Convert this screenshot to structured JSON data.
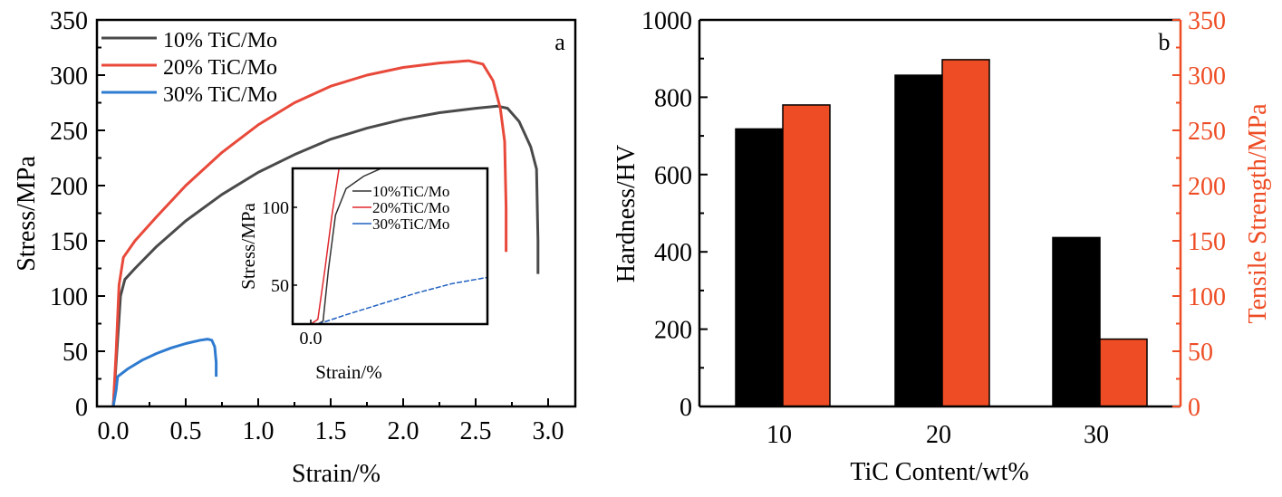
{
  "chart_data": [
    {
      "type": "line",
      "panel_label": "a",
      "title": "",
      "xlabel": "Strain/%",
      "ylabel": "Stress/MPa",
      "xlim": [
        -0.1,
        3.25
      ],
      "ylim": [
        0,
        350
      ],
      "xticks": [
        "0.0",
        "0.5",
        "1.0",
        "1.5",
        "2.0",
        "2.5",
        "3.0"
      ],
      "yticks": [
        "0",
        "50",
        "100",
        "150",
        "200",
        "250",
        "300",
        "350"
      ],
      "grid": false,
      "legend_position": "top-left",
      "series": [
        {
          "name": "10% TiC/Mo",
          "color": "#4a4a4a",
          "points": [
            [
              0.0,
              0
            ],
            [
              0.03,
              60
            ],
            [
              0.05,
              100
            ],
            [
              0.08,
              115
            ],
            [
              0.15,
              125
            ],
            [
              0.3,
              145
            ],
            [
              0.5,
              168
            ],
            [
              0.75,
              192
            ],
            [
              1.0,
              212
            ],
            [
              1.25,
              228
            ],
            [
              1.5,
              242
            ],
            [
              1.75,
              252
            ],
            [
              2.0,
              260
            ],
            [
              2.25,
              266
            ],
            [
              2.5,
              270
            ],
            [
              2.65,
              272
            ],
            [
              2.72,
              270
            ],
            [
              2.8,
              258
            ],
            [
              2.88,
              235
            ],
            [
              2.92,
              215
            ],
            [
              2.93,
              150
            ],
            [
              2.93,
              120
            ]
          ]
        },
        {
          "name": "20% TiC/Mo",
          "color": "#e8493a",
          "points": [
            [
              0.0,
              0
            ],
            [
              0.02,
              50
            ],
            [
              0.04,
              110
            ],
            [
              0.07,
              135
            ],
            [
              0.15,
              150
            ],
            [
              0.3,
              172
            ],
            [
              0.5,
              200
            ],
            [
              0.75,
              230
            ],
            [
              1.0,
              255
            ],
            [
              1.25,
              275
            ],
            [
              1.5,
              290
            ],
            [
              1.75,
              300
            ],
            [
              2.0,
              307
            ],
            [
              2.25,
              311
            ],
            [
              2.45,
              313
            ],
            [
              2.55,
              310
            ],
            [
              2.62,
              295
            ],
            [
              2.67,
              270
            ],
            [
              2.7,
              240
            ],
            [
              2.71,
              180
            ],
            [
              2.71,
              140
            ]
          ]
        },
        {
          "name": "30% TiC/Mo",
          "color": "#2f7bd0",
          "points": [
            [
              0.0,
              0
            ],
            [
              0.02,
              15
            ],
            [
              0.03,
              27
            ],
            [
              0.1,
              34
            ],
            [
              0.2,
              42
            ],
            [
              0.3,
              48
            ],
            [
              0.4,
              53
            ],
            [
              0.5,
              57
            ],
            [
              0.6,
              60
            ],
            [
              0.65,
              61
            ],
            [
              0.68,
              60
            ],
            [
              0.7,
              54
            ],
            [
              0.71,
              40
            ],
            [
              0.71,
              27
            ]
          ]
        }
      ],
      "inset": {
        "xlabel": "Strain/%",
        "ylabel": "Stress/MPa",
        "xlim": [
          -0.02,
          0.5
        ],
        "ylim": [
          25,
          125
        ],
        "xticks": [
          "0.0"
        ],
        "yticks": [
          "50",
          "100"
        ],
        "legend": [
          "10%TiC/Mo",
          "20%TiC/Mo",
          "30%TiC/Mo"
        ],
        "series": [
          {
            "name": "10%TiC/Mo",
            "color": "#333333",
            "points": [
              [
                0.02,
                25
              ],
              [
                0.035,
                27
              ],
              [
                0.05,
                60
              ],
              [
                0.07,
                95
              ],
              [
                0.1,
                112
              ],
              [
                0.15,
                120
              ],
              [
                0.2,
                125
              ]
            ]
          },
          {
            "name": "20%TiC/Mo",
            "color": "#e0282e",
            "points": [
              [
                0.0,
                25
              ],
              [
                0.02,
                28
              ],
              [
                0.04,
                60
              ],
              [
                0.06,
                95
              ],
              [
                0.08,
                125
              ]
            ]
          },
          {
            "name": "30%TiC/Mo",
            "color": "#2060c0",
            "points": [
              [
                0.02,
                25
              ],
              [
                0.1,
                31
              ],
              [
                0.2,
                38
              ],
              [
                0.3,
                45
              ],
              [
                0.4,
                51
              ],
              [
                0.5,
                55
              ]
            ]
          }
        ]
      }
    },
    {
      "type": "bar",
      "panel_label": "b",
      "title": "",
      "xlabel": "TiC Content/wt%",
      "ylabel": "Hardness/HV",
      "y2label": "Tensile Strength/MPa",
      "categories": [
        "10",
        "20",
        "30"
      ],
      "ylim": [
        0,
        1000
      ],
      "y2lim": [
        0,
        350
      ],
      "yticks": [
        "0",
        "200",
        "400",
        "600",
        "800",
        "1000"
      ],
      "y2ticks": [
        "0",
        "50",
        "100",
        "150",
        "200",
        "250",
        "300",
        "350"
      ],
      "grid": false,
      "series": [
        {
          "name": "Hardness",
          "axis": "left",
          "color": "#000000",
          "values": [
            718,
            857,
            437
          ]
        },
        {
          "name": "Tensile Strength",
          "axis": "right",
          "color": "#ee4c24",
          "values": [
            273,
            314,
            61
          ]
        }
      ],
      "axis2_color": "#ee4c24"
    }
  ]
}
